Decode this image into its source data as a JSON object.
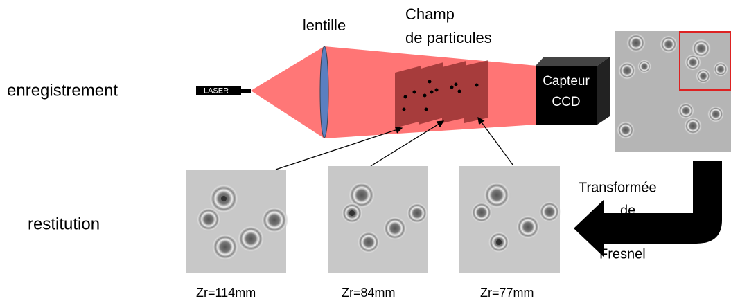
{
  "rows": {
    "recording": "enregistrement",
    "restitution": "restitution"
  },
  "setup": {
    "laser": "LASER",
    "lens": "lentille",
    "field": {
      "line1": "Champ",
      "line2": "de particules"
    },
    "sensor": {
      "line1": "Capteur",
      "line2": "CCD"
    }
  },
  "transform": {
    "line1": "Transformée",
    "line2": "de",
    "line3": "Fresnel"
  },
  "reconstructions": [
    {
      "label": "Zr=114mm"
    },
    {
      "label": "Zr=84mm"
    },
    {
      "label": "Zr=77mm"
    }
  ]
}
